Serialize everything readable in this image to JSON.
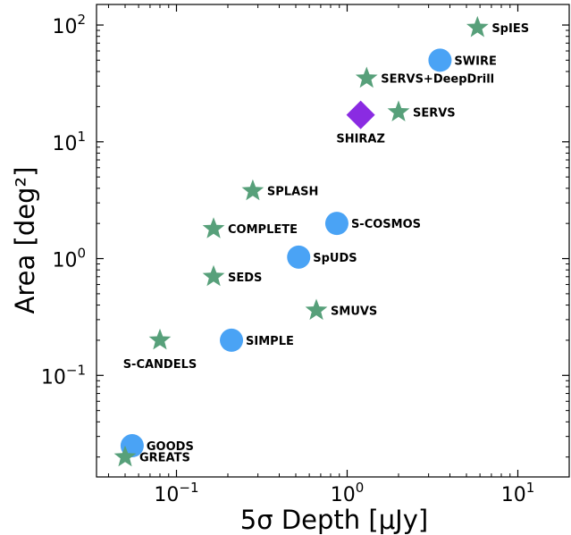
{
  "chart_data": {
    "type": "scatter",
    "xlabel": "5σ Depth [μJy]",
    "ylabel": "Area [deg²]",
    "x_scale": "log",
    "y_scale": "log",
    "xlim": [
      0.034,
      20
    ],
    "ylim": [
      0.0135,
      150
    ],
    "grid": false,
    "x_ticks": [
      {
        "value": 0.1,
        "base": "10",
        "exp": "−1"
      },
      {
        "value": 1,
        "base": "10",
        "exp": "0"
      },
      {
        "value": 10,
        "base": "10",
        "exp": "1"
      }
    ],
    "y_ticks": [
      {
        "value": 0.1,
        "base": "10",
        "exp": "−1"
      },
      {
        "value": 1,
        "base": "10",
        "exp": "0"
      },
      {
        "value": 10,
        "base": "10",
        "exp": "1"
      },
      {
        "value": 100,
        "base": "10",
        "exp": "2"
      }
    ],
    "colors": {
      "star": "#57a07a",
      "circle": "#4aa3f5",
      "diamond": "#8a2be2"
    },
    "points": [
      {
        "label": "SpIES",
        "x": 5.8,
        "y": 95,
        "marker": "star",
        "anchor": "right"
      },
      {
        "label": "SWIRE",
        "x": 3.5,
        "y": 50,
        "marker": "circle",
        "anchor": "right"
      },
      {
        "label": "SERVS+DeepDrill",
        "x": 1.3,
        "y": 35,
        "marker": "star",
        "anchor": "right"
      },
      {
        "label": "SERVS",
        "x": 2.0,
        "y": 18,
        "marker": "star",
        "anchor": "right"
      },
      {
        "label": "SHIRAZ",
        "x": 1.2,
        "y": 17,
        "marker": "diamond",
        "anchor": "below"
      },
      {
        "label": "SPLASH",
        "x": 0.28,
        "y": 3.8,
        "marker": "star",
        "anchor": "right"
      },
      {
        "label": "S-COSMOS",
        "x": 0.87,
        "y": 2.0,
        "marker": "circle",
        "anchor": "right"
      },
      {
        "label": "COMPLETE",
        "x": 0.165,
        "y": 1.8,
        "marker": "star",
        "anchor": "right"
      },
      {
        "label": "SpUDS",
        "x": 0.52,
        "y": 1.03,
        "marker": "circle",
        "anchor": "right"
      },
      {
        "label": "SEDS",
        "x": 0.165,
        "y": 0.7,
        "marker": "star",
        "anchor": "right"
      },
      {
        "label": "SMUVS",
        "x": 0.66,
        "y": 0.36,
        "marker": "star",
        "anchor": "right"
      },
      {
        "label": "SIMPLE",
        "x": 0.21,
        "y": 0.2,
        "marker": "circle",
        "anchor": "right"
      },
      {
        "label": "S-CANDELS",
        "x": 0.08,
        "y": 0.2,
        "marker": "star",
        "anchor": "below"
      },
      {
        "label": "GOODS",
        "x": 0.055,
        "y": 0.025,
        "marker": "circle",
        "anchor": "right"
      },
      {
        "label": "GREATS",
        "x": 0.05,
        "y": 0.02,
        "marker": "star",
        "anchor": "right"
      }
    ]
  }
}
